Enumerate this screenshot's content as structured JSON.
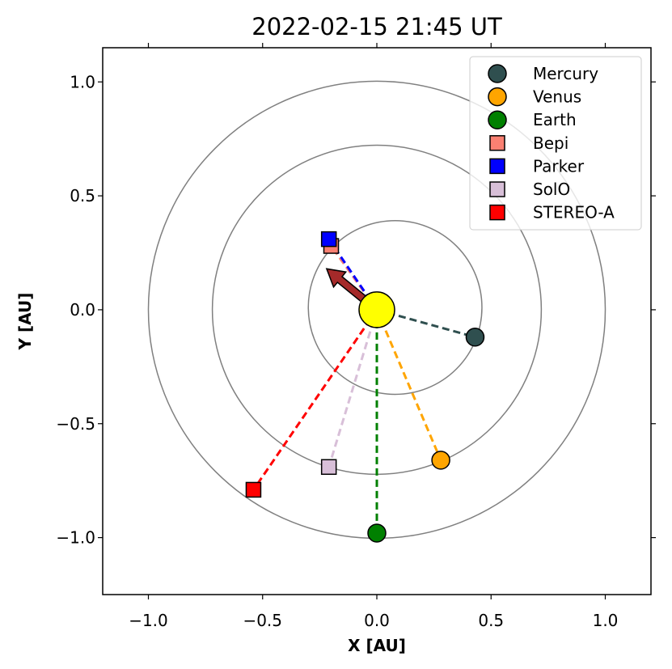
{
  "chart_data": {
    "type": "scatter",
    "title": "2022-02-15 21:45 UT",
    "xlabel": "X [AU]",
    "ylabel": "Y [AU]",
    "xlim": [
      -1.2,
      1.2
    ],
    "ylim": [
      -1.25,
      1.15
    ],
    "xticks": [
      -1.0,
      -0.5,
      0.0,
      0.5,
      1.0
    ],
    "yticks": [
      -1.0,
      -0.5,
      0.0,
      0.5,
      1.0
    ],
    "xtick_labels": [
      "−1.0",
      "−0.5",
      "0.0",
      "0.5",
      "1.0"
    ],
    "ytick_labels": [
      "−1.0",
      "−0.5",
      "0.0",
      "0.5",
      "1.0"
    ],
    "grid": false,
    "legend_placement": "top-right",
    "sun": {
      "x": 0.0,
      "y": 0.0,
      "color": "#ffff00"
    },
    "orbits": [
      {
        "name": "Mercury orbit",
        "cx": 0.08,
        "cy": 0.01,
        "r": 0.38
      },
      {
        "name": "Venus orbit",
        "cx": 0.0,
        "cy": 0.0,
        "r": 0.72
      },
      {
        "name": "Earth orbit",
        "cx": 0.0,
        "cy": 0.0,
        "r": 1.0
      }
    ],
    "orbit_color": "#808080",
    "series": [
      {
        "name": "Mercury",
        "marker": "circle",
        "color": "#2f4f4f",
        "x": 0.43,
        "y": -0.12
      },
      {
        "name": "Venus",
        "marker": "circle",
        "color": "#ffa500",
        "x": 0.28,
        "y": -0.66
      },
      {
        "name": "Earth",
        "marker": "circle",
        "color": "#008000",
        "x": 0.0,
        "y": -0.98
      },
      {
        "name": "Bepi",
        "marker": "square",
        "color": "#fa8072",
        "x": -0.2,
        "y": 0.28
      },
      {
        "name": "Parker",
        "marker": "square",
        "color": "#0000ff",
        "x": -0.21,
        "y": 0.31
      },
      {
        "name": "SolO",
        "marker": "square",
        "color": "#d8bfd8",
        "x": -0.21,
        "y": -0.69
      },
      {
        "name": "STEREO-A",
        "marker": "square",
        "color": "#ff0000",
        "x": -0.54,
        "y": -0.79
      }
    ],
    "arrow": {
      "x_start": 0.0,
      "y_start": 0.0,
      "x_end": -0.22,
      "y_end": 0.18,
      "color": "#a52a2a"
    }
  }
}
